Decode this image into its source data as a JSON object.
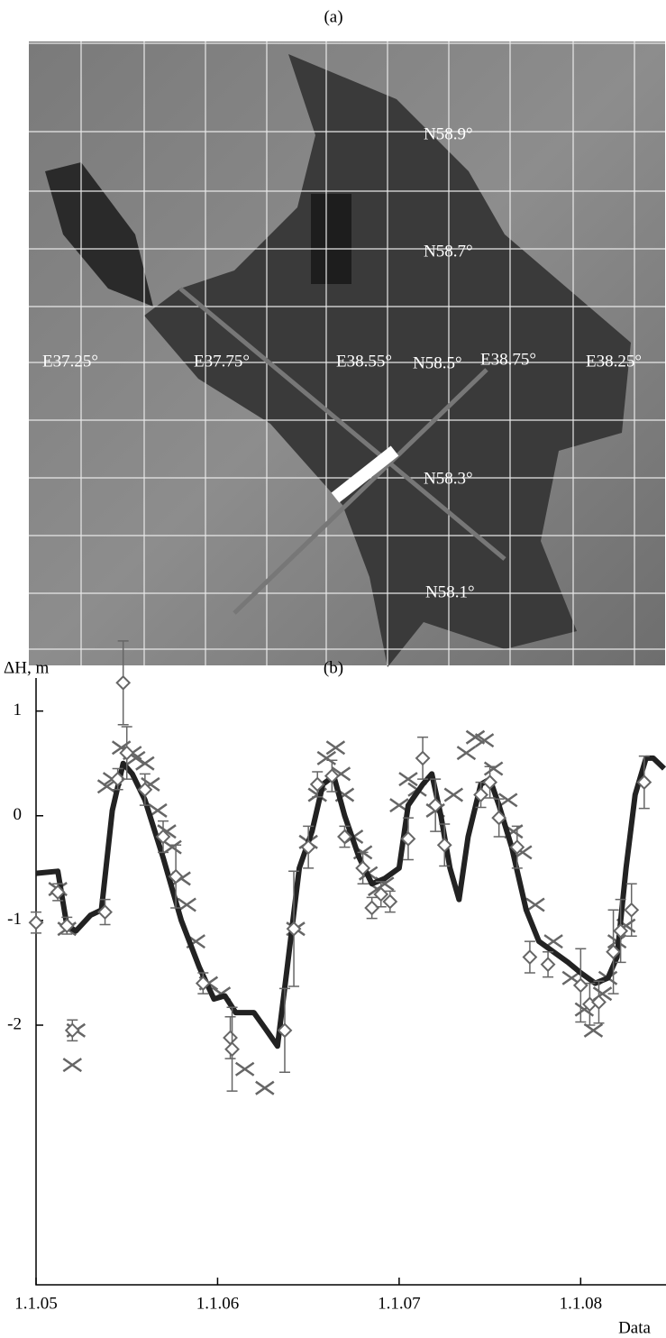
{
  "panel_a": {
    "label": "(a)",
    "grid_labels": [
      "N58.9°",
      "N58.7°",
      "E37.25°",
      "E37.75°",
      "E38.55°",
      "N58.5°",
      "E38.75°",
      "E38.25°",
      "N58.3°",
      "N58.1°"
    ]
  },
  "chart_data": {
    "type": "line",
    "title": "(b)",
    "y_label": "ΔH, m",
    "x_label": "Data",
    "xlim": [
      2005,
      2008.47
    ],
    "ylim": [
      -4.48,
      1.35
    ],
    "xticks": [
      {
        "value": 2005,
        "label": "1.1.05"
      },
      {
        "value": 2006,
        "label": "1.1.06"
      },
      {
        "value": 2007,
        "label": "1.1.07"
      },
      {
        "value": 2008,
        "label": "1.1.08"
      }
    ],
    "yticks": [
      -2,
      -1,
      0,
      1
    ],
    "series": [
      {
        "mode": "line",
        "color": "#222222",
        "x": [
          2005.0,
          2005.12,
          2005.17,
          2005.22,
          2005.3,
          2005.36,
          2005.42,
          2005.48,
          2005.53,
          2005.6,
          2005.7,
          2005.8,
          2005.9,
          2005.98,
          2006.04,
          2006.1,
          2006.2,
          2006.27,
          2006.33,
          2006.38,
          2006.45,
          2006.52,
          2006.58,
          2006.64,
          2006.7,
          2006.78,
          2006.85,
          2006.92,
          2007.0,
          2007.05,
          2007.13,
          2007.18,
          2007.23,
          2007.28,
          2007.33,
          2007.38,
          2007.45,
          2007.5,
          2007.55,
          2007.62,
          2007.7,
          2007.77,
          2007.85,
          2007.93,
          2008.0,
          2008.08,
          2008.15,
          2008.2,
          2008.25,
          2008.3,
          2008.36,
          2008.4,
          2008.46
        ],
        "values": [
          -0.55,
          -0.53,
          -1.05,
          -1.1,
          -0.95,
          -0.9,
          0.05,
          0.5,
          0.4,
          0.15,
          -0.4,
          -1.0,
          -1.45,
          -1.75,
          -1.72,
          -1.88,
          -1.88,
          -2.05,
          -2.2,
          -1.5,
          -0.5,
          -0.15,
          0.3,
          0.38,
          0.0,
          -0.4,
          -0.65,
          -0.6,
          -0.5,
          0.1,
          0.3,
          0.4,
          0.0,
          -0.5,
          -0.8,
          -0.2,
          0.3,
          0.35,
          0.1,
          -0.3,
          -0.9,
          -1.2,
          -1.3,
          -1.4,
          -1.5,
          -1.6,
          -1.55,
          -1.35,
          -0.5,
          0.2,
          0.55,
          0.55,
          0.45
        ]
      },
      {
        "mode": "diamond",
        "color": "#666666",
        "x": [
          2005.0,
          2005.12,
          2005.17,
          2005.2,
          2005.38,
          2005.45,
          2005.48,
          2005.5,
          2005.6,
          2005.7,
          2005.77,
          2005.92,
          2006.07,
          2006.08,
          2006.37,
          2006.42,
          2006.5,
          2006.55,
          2006.63,
          2006.7,
          2006.8,
          2006.85,
          2006.9,
          2006.95,
          2007.05,
          2007.13,
          2007.2,
          2007.25,
          2007.45,
          2007.5,
          2007.55,
          2007.65,
          2007.72,
          2007.82,
          2008.0,
          2008.05,
          2008.1,
          2008.18,
          2008.22,
          2008.28,
          2008.35
        ],
        "values": [
          -1.02,
          -0.73,
          -1.05,
          -2.05,
          -0.92,
          0.35,
          1.27,
          0.6,
          0.25,
          -0.2,
          -0.58,
          -1.6,
          -2.12,
          -2.23,
          -2.05,
          -1.08,
          -0.3,
          0.3,
          0.38,
          -0.2,
          -0.5,
          -0.88,
          -0.75,
          -0.82,
          -0.22,
          0.55,
          0.1,
          -0.28,
          0.2,
          0.32,
          -0.02,
          -0.3,
          -1.35,
          -1.42,
          -1.62,
          -1.8,
          -1.78,
          -1.3,
          -1.1,
          -0.9,
          0.32
        ],
        "errors": [
          0.1,
          0.08,
          0.08,
          0.1,
          0.12,
          0.1,
          0.4,
          0.25,
          0.15,
          0.15,
          0.3,
          0.1,
          0.2,
          0.4,
          0.4,
          0.55,
          0.2,
          0.12,
          0.15,
          0.1,
          0.15,
          0.1,
          0.12,
          0.1,
          0.2,
          0.2,
          0.25,
          0.2,
          0.12,
          0.15,
          0.18,
          0.2,
          0.15,
          0.12,
          0.35,
          0.2,
          0.2,
          0.4,
          0.3,
          0.25,
          0.25
        ]
      },
      {
        "mode": "cross",
        "color": "#666666",
        "x": [
          2005.12,
          2005.17,
          2005.2,
          2005.22,
          2005.39,
          2005.42,
          2005.47,
          2005.53,
          2005.55,
          2005.6,
          2005.63,
          2005.67,
          2005.72,
          2005.75,
          2005.8,
          2005.83,
          2005.88,
          2005.95,
          2006.02,
          2006.15,
          2006.26,
          2006.43,
          2006.5,
          2006.55,
          2006.6,
          2006.65,
          2006.68,
          2006.7,
          2006.75,
          2006.8,
          2006.83,
          2006.88,
          2006.92,
          2007.0,
          2007.05,
          2007.1,
          2007.2,
          2007.3,
          2007.37,
          2007.42,
          2007.47,
          2007.52,
          2007.6,
          2007.63,
          2007.68,
          2007.75,
          2007.85,
          2007.95,
          2008.02,
          2008.07,
          2008.12,
          2008.15,
          2008.2,
          2008.25
        ],
        "values": [
          -0.7,
          -1.08,
          -2.38,
          -2.05,
          0.28,
          0.35,
          0.65,
          0.6,
          0.55,
          0.5,
          0.3,
          0.05,
          -0.15,
          -0.3,
          -0.6,
          -0.85,
          -1.2,
          -1.6,
          -1.7,
          -2.42,
          -2.6,
          -1.08,
          -0.25,
          0.2,
          0.55,
          0.65,
          0.4,
          0.2,
          -0.2,
          -0.35,
          -0.55,
          -0.7,
          -0.65,
          0.1,
          0.35,
          0.25,
          0.05,
          0.2,
          0.6,
          0.75,
          0.72,
          0.45,
          0.15,
          -0.15,
          -0.35,
          -0.85,
          -1.2,
          -1.55,
          -1.85,
          -2.05,
          -1.7,
          -1.55,
          -1.2,
          -1.05
        ]
      }
    ]
  }
}
